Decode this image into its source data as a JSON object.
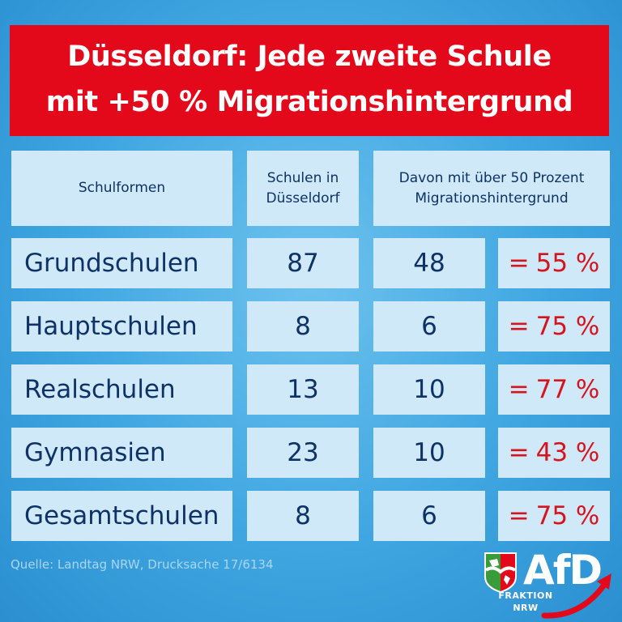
{
  "banner": {
    "line1": "Düsseldorf: Jede zweite Schule",
    "line2": "mit +50 % Migrationshintergrund"
  },
  "table": {
    "headers": {
      "col1": "Schulformen",
      "col2_line1": "Schulen in",
      "col2_line2": "Düsseldorf",
      "col3_line1": "Davon mit über 50 Prozent",
      "col3_line2": "Migrationshintergrund"
    },
    "rows": [
      {
        "name": "Grundschulen",
        "schools": "87",
        "over50": "48",
        "percent": "55 %"
      },
      {
        "name": "Hauptschulen",
        "schools": "8",
        "over50": "6",
        "percent": "75 %"
      },
      {
        "name": "Realschulen",
        "schools": "13",
        "over50": "10",
        "percent": "77 %"
      },
      {
        "name": "Gymnasien",
        "schools": "23",
        "over50": "10",
        "percent": "43 %"
      },
      {
        "name": "Gesamtschulen",
        "schools": "8",
        "over50": "6",
        "percent": "75 %"
      }
    ],
    "equals": "="
  },
  "source": "Quelle: Landtag NRW, Drucksache 17/6134",
  "logo": {
    "word": "AfD",
    "line1": "FRAKTION",
    "line2": "NRW"
  },
  "colors": {
    "banner": "#e4081b",
    "cell": "#cfe9f9",
    "text": "#0e3266",
    "percent": "#d7141e"
  }
}
